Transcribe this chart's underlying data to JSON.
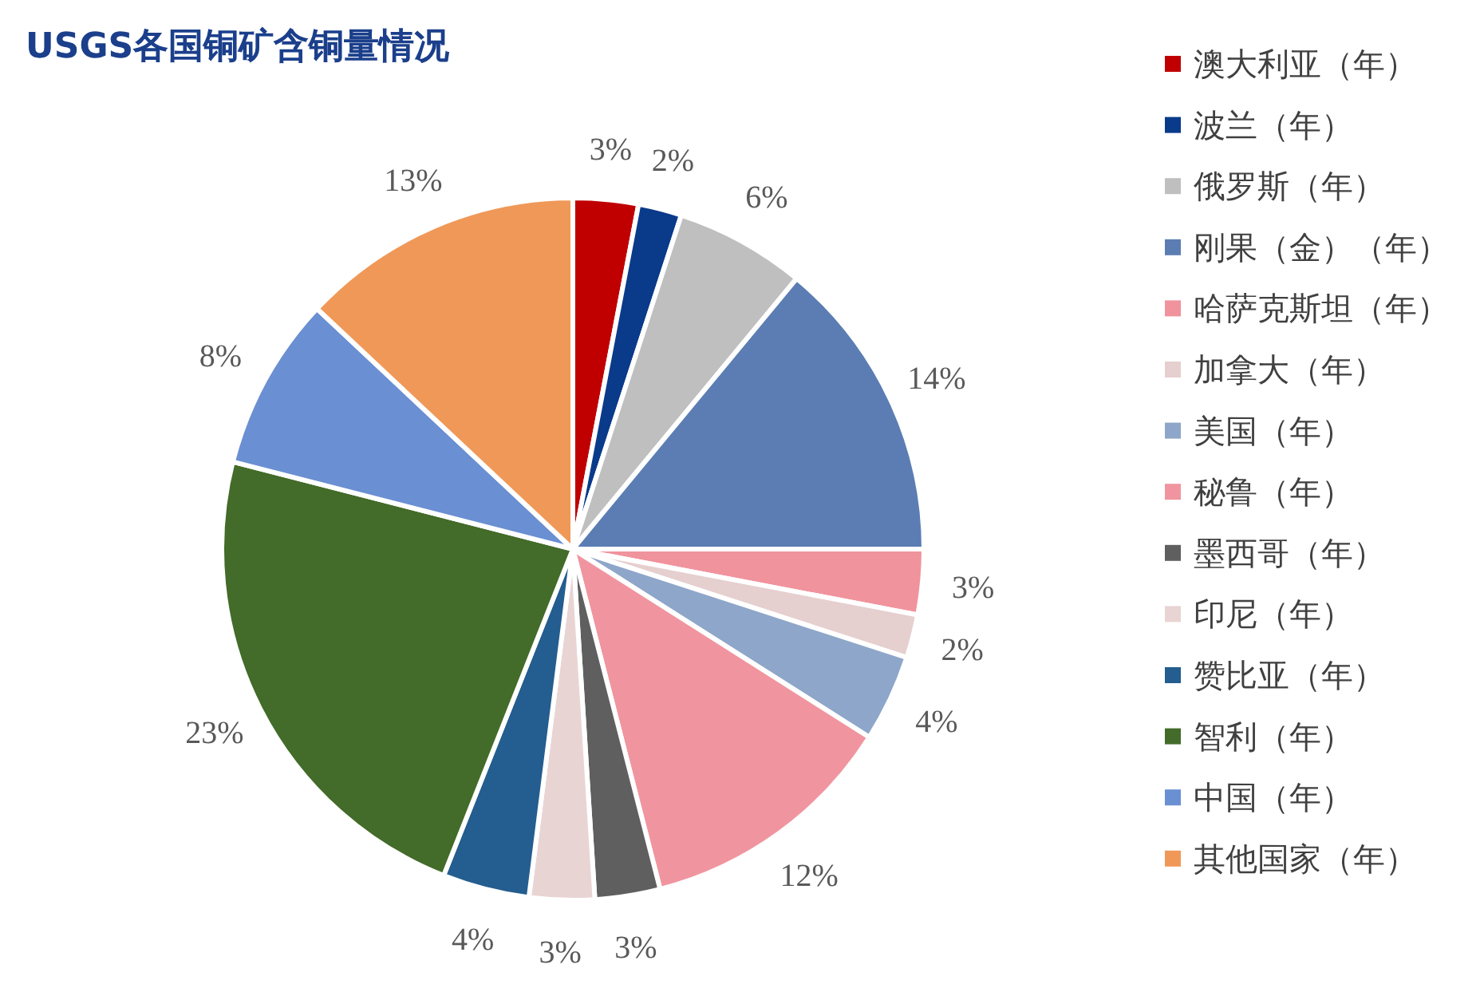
{
  "chart_data": {
    "type": "pie",
    "title": "USGS各国铜矿含铜量情况",
    "categories": [
      "澳大利亚（年）",
      "波兰（年）",
      "俄罗斯（年）",
      "刚果（金）（年）",
      "哈萨克斯坦（年）",
      "加拿大（年）",
      "美国（年）",
      "秘鲁（年）",
      "墨西哥（年）",
      "印尼（年）",
      "赞比亚（年）",
      "智利（年）",
      "中国（年）",
      "其他国家（年）"
    ],
    "values": [
      3,
      2,
      6,
      14,
      3,
      2,
      4,
      12,
      3,
      3,
      4,
      23,
      8,
      13
    ],
    "colors": [
      "#c00000",
      "#0a3a8a",
      "#bfbfbf",
      "#5b7db3",
      "#f0939d",
      "#e6cfcf",
      "#8ea6c9",
      "#f0959f",
      "#5f5f5f",
      "#e9d4d4",
      "#245d8f",
      "#436b29",
      "#6a8fd2",
      "#f09858"
    ],
    "value_labels": [
      "3%",
      "2%",
      "6%",
      "14%",
      "3%",
      "2%",
      "4%",
      "12%",
      "3%",
      "3%",
      "4%",
      "23%",
      "8%",
      "13%"
    ],
    "legend": "right"
  }
}
